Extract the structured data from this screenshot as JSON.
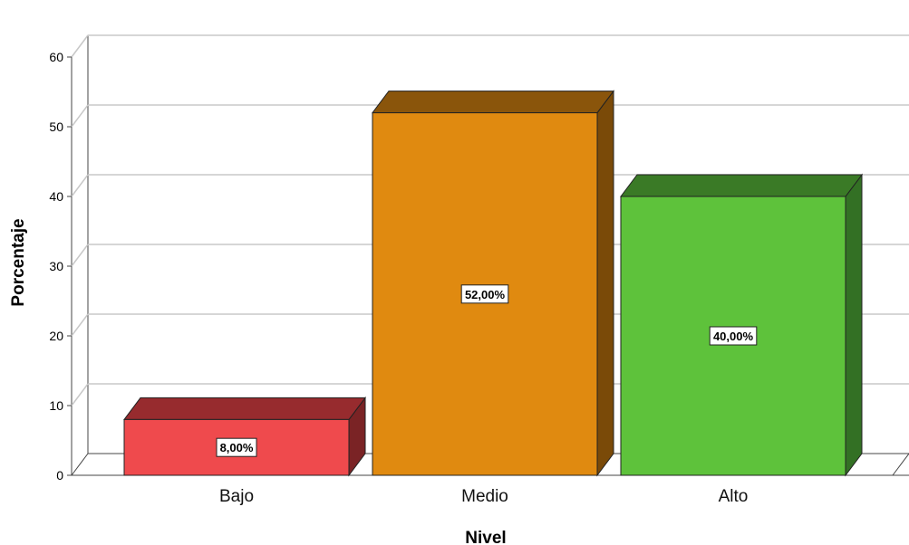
{
  "chart_data": {
    "type": "bar",
    "title": "",
    "xlabel": "Nivel",
    "ylabel": "Porcentaje",
    "ylim": [
      0,
      60
    ],
    "yticks": [
      0,
      10,
      20,
      30,
      40,
      50,
      60
    ],
    "grid": true,
    "categories": [
      "Bajo",
      "Medio",
      "Alto"
    ],
    "values": [
      8,
      52,
      40
    ],
    "data_labels": [
      "8,00%",
      "52,00%",
      "40,00%"
    ],
    "colors": [
      {
        "front": "#ef4a4d",
        "top": "#972b2e",
        "side": "#7a2325"
      },
      {
        "front": "#e08a10",
        "top": "#8a550b",
        "side": "#7a4a08"
      },
      {
        "front": "#5ec23b",
        "top": "#3a7a26",
        "side": "#337024"
      }
    ]
  }
}
